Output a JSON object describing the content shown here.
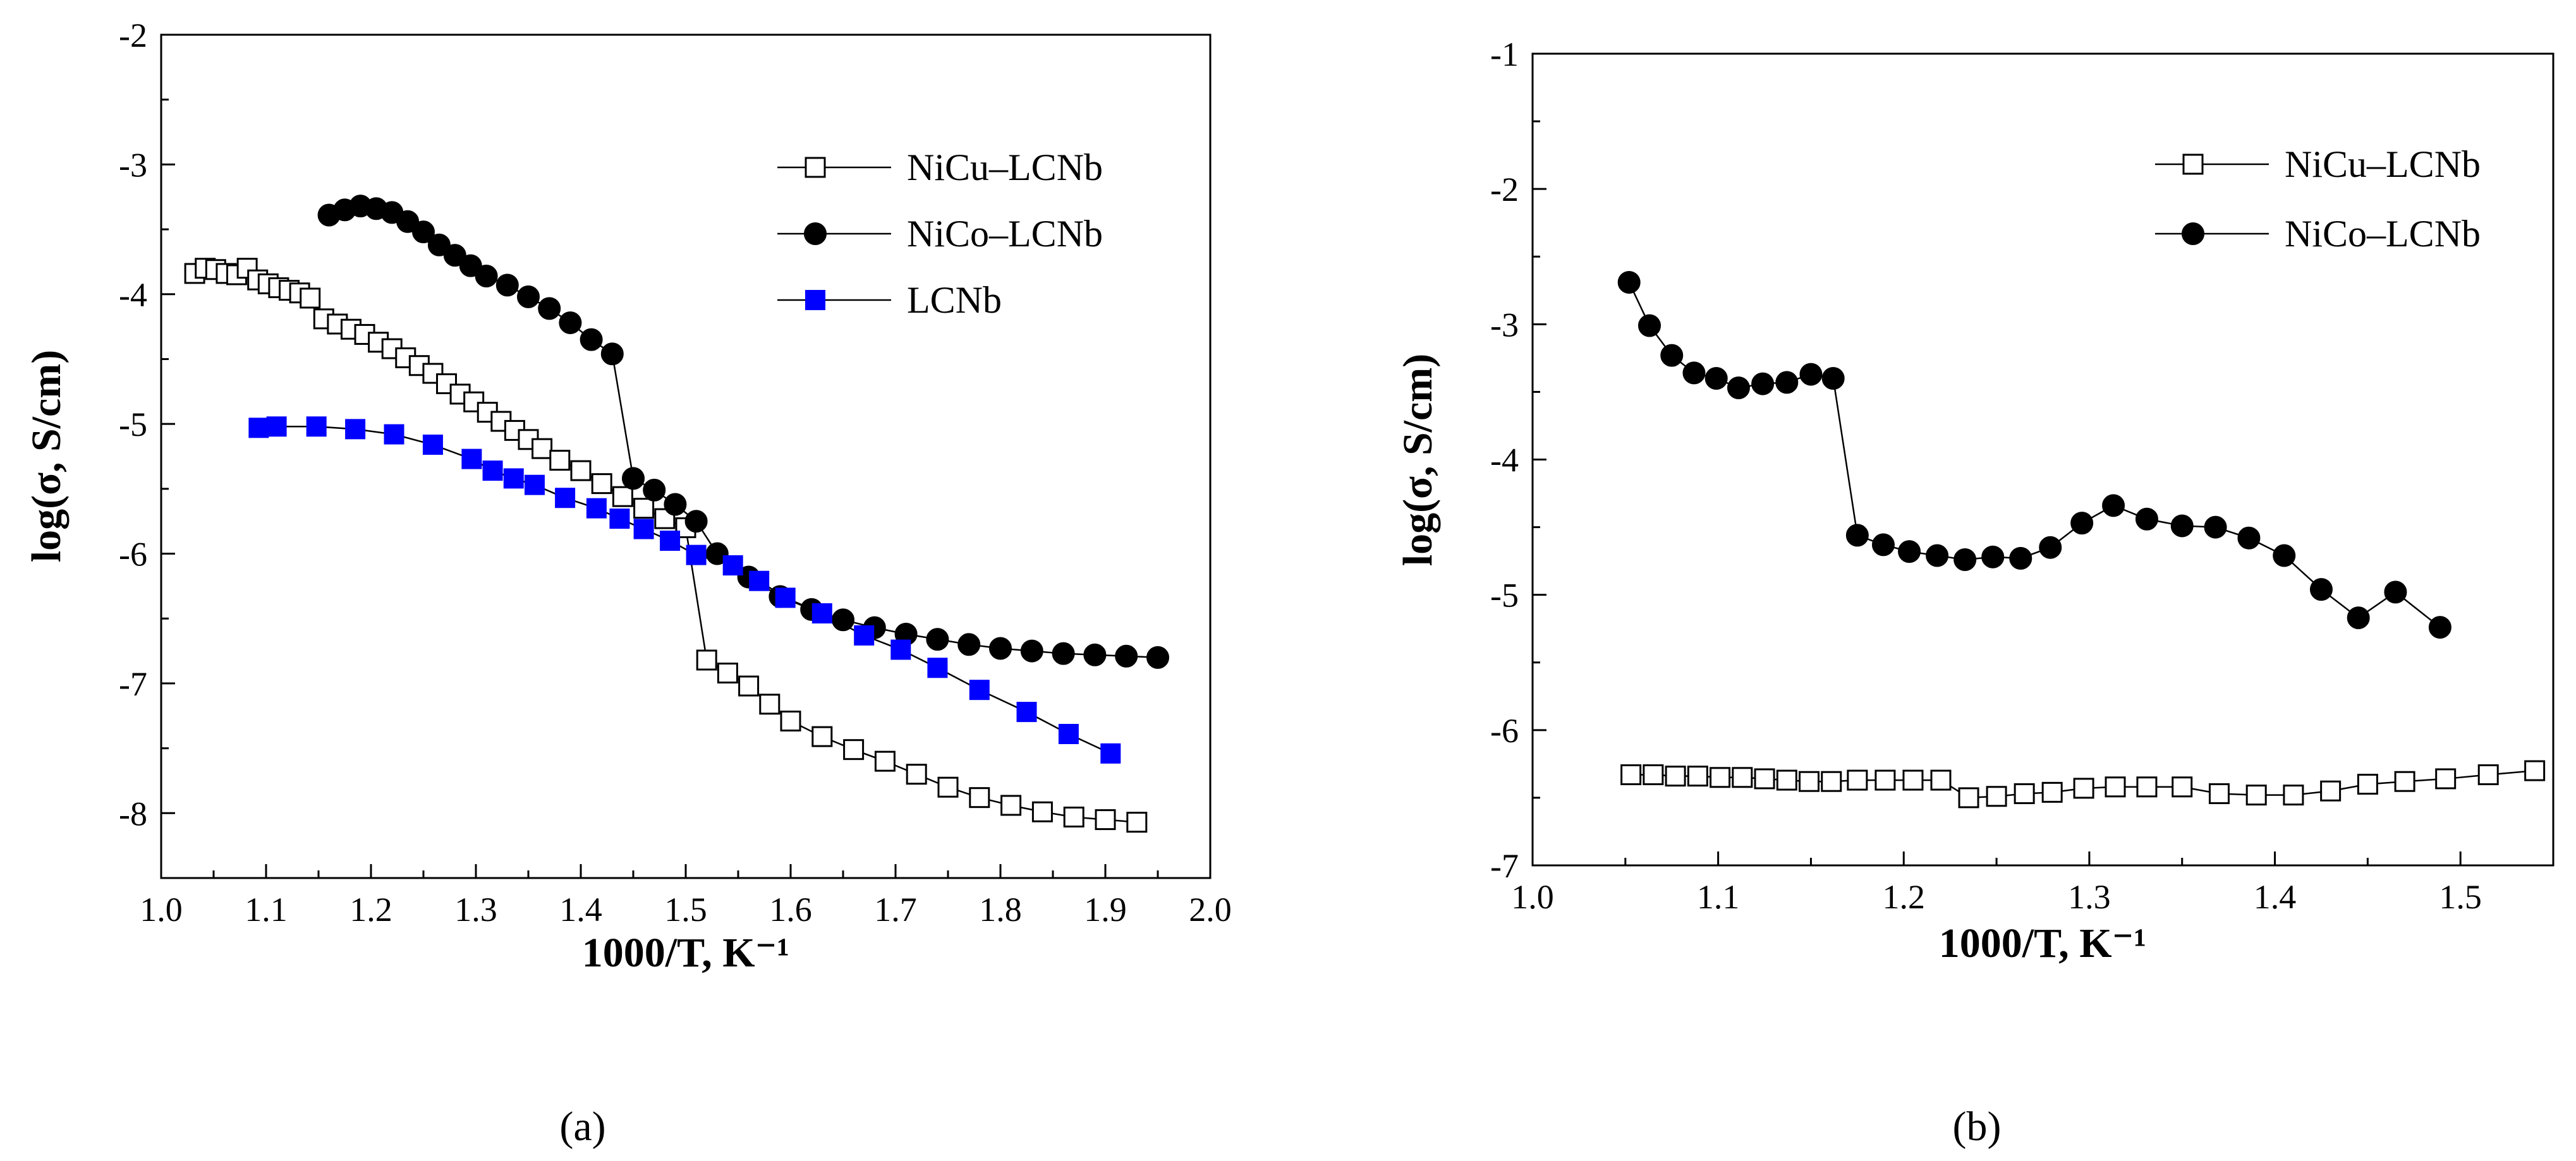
{
  "chart_data": [
    {
      "type": "scatter",
      "title": "",
      "panel_label": "(a)",
      "xlabel": "1000/T, K⁻¹",
      "ylabel": "log(σ, S/cm)",
      "xlim": [
        1.0,
        2.0
      ],
      "ylim": [
        -8.5,
        -2
      ],
      "x_ticks": [
        "1.0",
        "1.1",
        "1.2",
        "1.3",
        "1.4",
        "1.5",
        "1.6",
        "1.7",
        "1.8",
        "1.9",
        "2.0"
      ],
      "y_ticks": [
        "-2",
        "-3",
        "-4",
        "-5",
        "-6",
        "-7",
        "-8"
      ],
      "legend_position": "top-right",
      "series": [
        {
          "name": "NiCu–LCNb",
          "marker": "open-square",
          "color": "#000000",
          "x": [
            1.032,
            1.042,
            1.052,
            1.062,
            1.072,
            1.082,
            1.092,
            1.102,
            1.112,
            1.122,
            1.132,
            1.142,
            1.155,
            1.168,
            1.181,
            1.194,
            1.207,
            1.22,
            1.233,
            1.246,
            1.259,
            1.272,
            1.285,
            1.298,
            1.311,
            1.324,
            1.337,
            1.35,
            1.363,
            1.38,
            1.4,
            1.42,
            1.44,
            1.46,
            1.48,
            1.5,
            1.52,
            1.54,
            1.56,
            1.58,
            1.6,
            1.63,
            1.66,
            1.69,
            1.72,
            1.75,
            1.78,
            1.81,
            1.84,
            1.87,
            1.9,
            1.93
          ],
          "y": [
            -3.84,
            -3.8,
            -3.81,
            -3.84,
            -3.85,
            -3.8,
            -3.89,
            -3.92,
            -3.95,
            -3.97,
            -3.99,
            -4.03,
            -4.19,
            -4.23,
            -4.27,
            -4.31,
            -4.37,
            -4.42,
            -4.49,
            -4.55,
            -4.61,
            -4.69,
            -4.77,
            -4.83,
            -4.91,
            -4.98,
            -5.05,
            -5.12,
            -5.19,
            -5.28,
            -5.36,
            -5.46,
            -5.56,
            -5.65,
            -5.73,
            -5.8,
            -6.82,
            -6.92,
            -7.02,
            -7.16,
            -7.29,
            -7.41,
            -7.51,
            -7.6,
            -7.7,
            -7.8,
            -7.88,
            -7.94,
            -7.99,
            -8.03,
            -8.05,
            -8.07
          ]
        },
        {
          "name": "NiCo–LCNb",
          "marker": "filled-circle",
          "color": "#000000",
          "x": [
            1.16,
            1.175,
            1.19,
            1.205,
            1.22,
            1.235,
            1.25,
            1.265,
            1.28,
            1.295,
            1.31,
            1.33,
            1.35,
            1.37,
            1.39,
            1.41,
            1.43,
            1.45,
            1.47,
            1.49,
            1.51,
            1.53,
            1.56,
            1.59,
            1.62,
            1.65,
            1.68,
            1.71,
            1.74,
            1.77,
            1.8,
            1.83,
            1.86,
            1.89,
            1.92,
            1.95
          ],
          "y": [
            -3.39,
            -3.35,
            -3.32,
            -3.34,
            -3.37,
            -3.44,
            -3.52,
            -3.62,
            -3.7,
            -3.78,
            -3.86,
            -3.93,
            -4.02,
            -4.11,
            -4.22,
            -4.35,
            -4.46,
            -5.42,
            -5.51,
            -5.62,
            -5.75,
            -6.0,
            -6.18,
            -6.33,
            -6.43,
            -6.51,
            -6.57,
            -6.62,
            -6.66,
            -6.7,
            -6.73,
            -6.75,
            -6.77,
            -6.78,
            -6.79,
            -6.8
          ]
        },
        {
          "name": "LCNb",
          "marker": "filled-square",
          "color": "#0000ff",
          "x": [
            1.093,
            1.11,
            1.148,
            1.185,
            1.222,
            1.259,
            1.296,
            1.316,
            1.336,
            1.356,
            1.385,
            1.415,
            1.437,
            1.46,
            1.485,
            1.51,
            1.545,
            1.57,
            1.595,
            1.63,
            1.67,
            1.705,
            1.74,
            1.78,
            1.825,
            1.865,
            1.905
          ],
          "y": [
            -5.03,
            -5.02,
            -5.02,
            -5.04,
            -5.08,
            -5.16,
            -5.27,
            -5.36,
            -5.42,
            -5.47,
            -5.57,
            -5.65,
            -5.73,
            -5.81,
            -5.9,
            -6.01,
            -6.09,
            -6.21,
            -6.34,
            -6.46,
            -6.63,
            -6.74,
            -6.88,
            -7.05,
            -7.22,
            -7.39,
            -7.54
          ]
        }
      ]
    },
    {
      "type": "scatter",
      "title": "",
      "panel_label": "(b)",
      "xlabel": "1000/T, K⁻¹",
      "ylabel": "log(σ, S/cm)",
      "xlim": [
        1.0,
        1.55
      ],
      "ylim": [
        -7,
        -1
      ],
      "x_ticks": [
        "1.0",
        "1.1",
        "1.2",
        "1.3",
        "1.4",
        "1.5"
      ],
      "y_ticks": [
        "-1",
        "-2",
        "-3",
        "-4",
        "-5",
        "-6",
        "-7"
      ],
      "legend_position": "top-right",
      "series": [
        {
          "name": "NiCu–LCNb",
          "marker": "open-square",
          "color": "#000000",
          "x": [
            1.053,
            1.065,
            1.077,
            1.089,
            1.101,
            1.113,
            1.125,
            1.137,
            1.149,
            1.161,
            1.175,
            1.19,
            1.205,
            1.22,
            1.235,
            1.25,
            1.265,
            1.28,
            1.297,
            1.314,
            1.331,
            1.35,
            1.37,
            1.39,
            1.41,
            1.43,
            1.45,
            1.47,
            1.492,
            1.515,
            1.54
          ],
          "y": [
            -6.33,
            -6.33,
            -6.34,
            -6.34,
            -6.35,
            -6.35,
            -6.36,
            -6.37,
            -6.38,
            -6.38,
            -6.37,
            -6.37,
            -6.37,
            -6.37,
            -6.5,
            -6.49,
            -6.47,
            -6.46,
            -6.43,
            -6.42,
            -6.42,
            -6.42,
            -6.47,
            -6.48,
            -6.48,
            -6.45,
            -6.4,
            -6.38,
            -6.36,
            -6.33,
            -6.3
          ]
        },
        {
          "name": "NiCo–LCNb",
          "marker": "filled-circle",
          "color": "#000000",
          "x": [
            1.052,
            1.063,
            1.075,
            1.087,
            1.099,
            1.111,
            1.124,
            1.137,
            1.15,
            1.162,
            1.175,
            1.189,
            1.203,
            1.218,
            1.233,
            1.248,
            1.263,
            1.279,
            1.296,
            1.313,
            1.331,
            1.35,
            1.368,
            1.386,
            1.405,
            1.425,
            1.445,
            1.465,
            1.489
          ],
          "y": [
            -2.69,
            -3.01,
            -3.23,
            -3.36,
            -3.4,
            -3.47,
            -3.44,
            -3.43,
            -3.37,
            -3.4,
            -4.56,
            -4.63,
            -4.68,
            -4.71,
            -4.74,
            -4.72,
            -4.73,
            -4.65,
            -4.47,
            -4.34,
            -4.44,
            -4.49,
            -4.5,
            -4.58,
            -4.71,
            -4.96,
            -5.17,
            -4.98,
            -5.24
          ]
        }
      ]
    }
  ]
}
